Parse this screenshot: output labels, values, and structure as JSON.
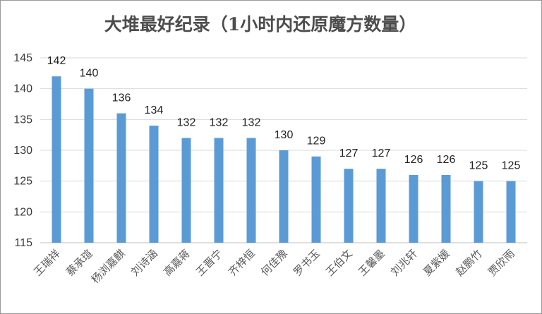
{
  "colors": {
    "bar": "#5b9bd5",
    "grid": "#d9d9d9",
    "axis": "#bfbfbf"
  },
  "chart_data": {
    "type": "bar",
    "title": "大堆最好纪录（1小时内还原魔方数量）",
    "xlabel": "",
    "ylabel": "",
    "ylim": [
      115,
      145
    ],
    "yticks": [
      115,
      120,
      125,
      130,
      135,
      140,
      145
    ],
    "grid": true,
    "legend": "none",
    "data_labels": true,
    "categories": [
      "王瑞祥",
      "蔡承瑄",
      "杨浏嘉麒",
      "刘诗涵",
      "高嘉蒋",
      "王晋宁",
      "齐梓恒",
      "何佳豫",
      "罗书玉",
      "王伯文",
      "王馨墨",
      "刘兆轩",
      "夏紫媛",
      "赵鹏竹",
      "贾欣雨"
    ],
    "values": [
      142,
      140,
      136,
      134,
      132,
      132,
      132,
      130,
      129,
      127,
      127,
      126,
      126,
      125,
      125
    ]
  }
}
